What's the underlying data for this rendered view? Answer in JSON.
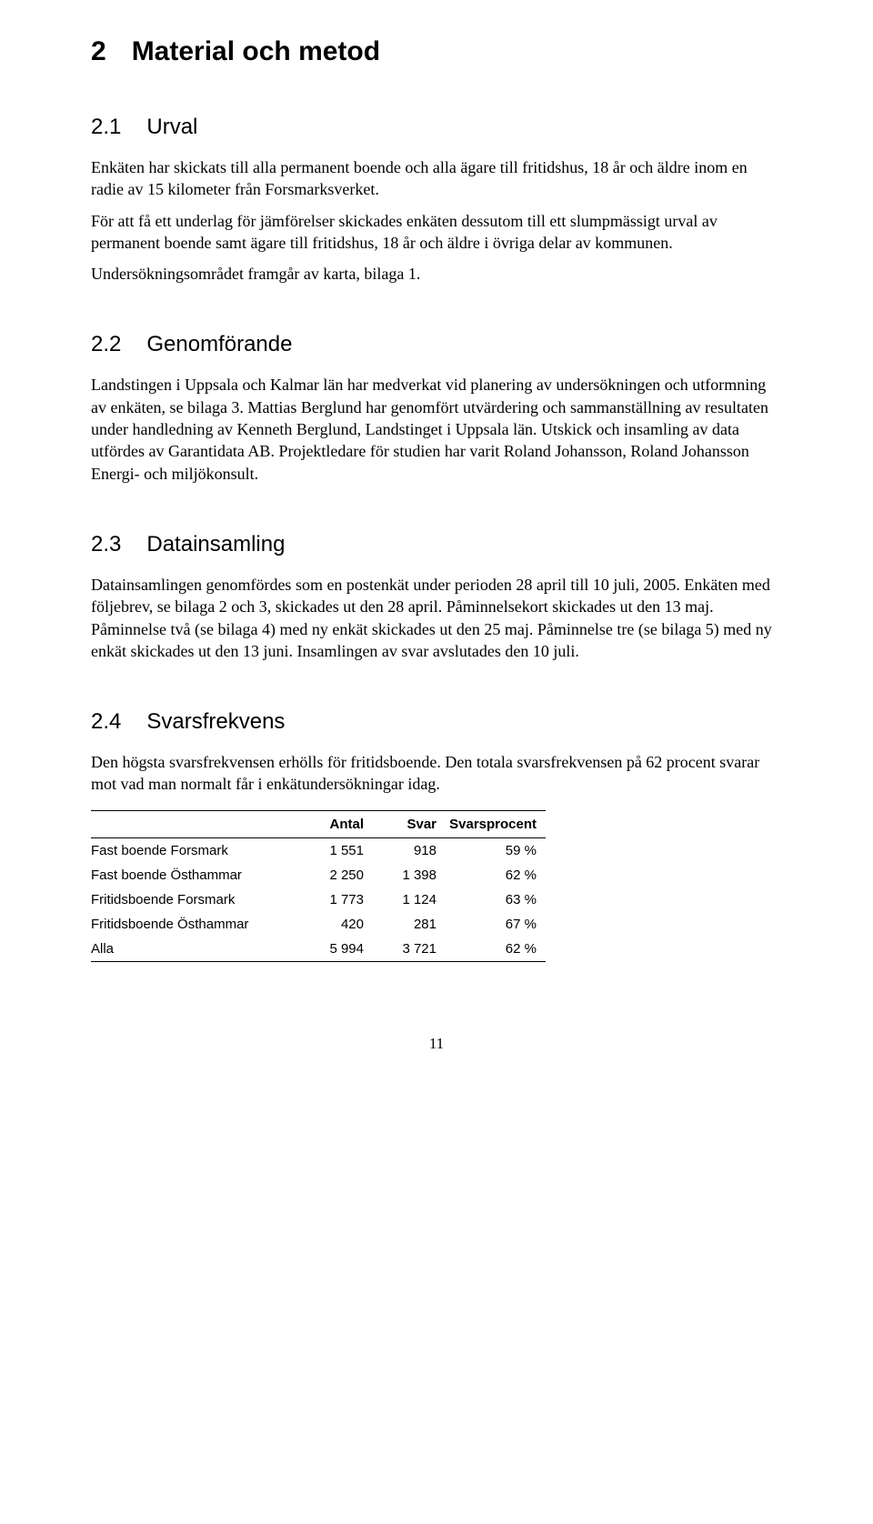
{
  "section": {
    "number": "2",
    "title": "Material och metod"
  },
  "sub21": {
    "number": "2.1",
    "title": "Urval",
    "p1": "Enkäten har skickats till alla permanent boende och alla ägare till fritidshus, 18 år och äldre inom en radie av 15 kilometer från Forsmarksverket.",
    "p2": "För att få ett underlag för jämförelser skickades enkäten dessutom till ett slumpmässigt urval av permanent boende samt ägare till fritidshus, 18 år och äldre i övriga delar av kommunen.",
    "p3": "Undersökningsområdet framgår av karta, bilaga 1."
  },
  "sub22": {
    "number": "2.2",
    "title": "Genomförande",
    "p1": "Landstingen i Uppsala och Kalmar län har medverkat vid planering av undersökningen och utformning av enkäten, se bilaga 3. Mattias Berglund har genomfört utvärdering och sammanställning av resultaten under handledning av Kenneth Berglund, Landstinget i Uppsala län. Utskick och insamling av data utfördes av Garantidata AB. Projektledare för studien har varit Roland Johansson, Roland Johansson Energi- och miljökonsult."
  },
  "sub23": {
    "number": "2.3",
    "title": "Datainsamling",
    "p1": "Datainsamlingen genomfördes som en postenkät under perioden 28 april till 10 juli, 2005. Enkäten med följebrev, se bilaga 2 och 3, skickades ut den 28 april. Påminnelsekort skickades ut den 13 maj. Påminnelse två (se bilaga 4) med ny enkät skickades ut den 25 maj. Påminnelse tre (se bilaga 5) med ny enkät skickades ut den 13 juni. Insamlingen av svar avslutades den 10 juli."
  },
  "sub24": {
    "number": "2.4",
    "title": "Svarsfrekvens",
    "p1": "Den högsta svarsfrekvensen erhölls för fritidsboende. Den totala svarsfrekvensen på 62 procent svarar mot vad man normalt får i enkätundersökningar idag."
  },
  "table": {
    "columns": [
      "",
      "Antal",
      "Svar",
      "Svarsprocent"
    ],
    "rows": [
      [
        "Fast boende Forsmark",
        "1 551",
        "918",
        "59 %"
      ],
      [
        "Fast boende Östhammar",
        "2 250",
        "1 398",
        "62 %"
      ],
      [
        "Fritidsboende Forsmark",
        "1 773",
        "1 124",
        "63 %"
      ],
      [
        "Fritidsboende Östhammar",
        "420",
        "281",
        "67 %"
      ],
      [
        "Alla",
        "5 994",
        "3 721",
        "62 %"
      ]
    ]
  },
  "page_number": "11",
  "colors": {
    "text": "#000000",
    "background": "#ffffff",
    "rule": "#000000"
  }
}
